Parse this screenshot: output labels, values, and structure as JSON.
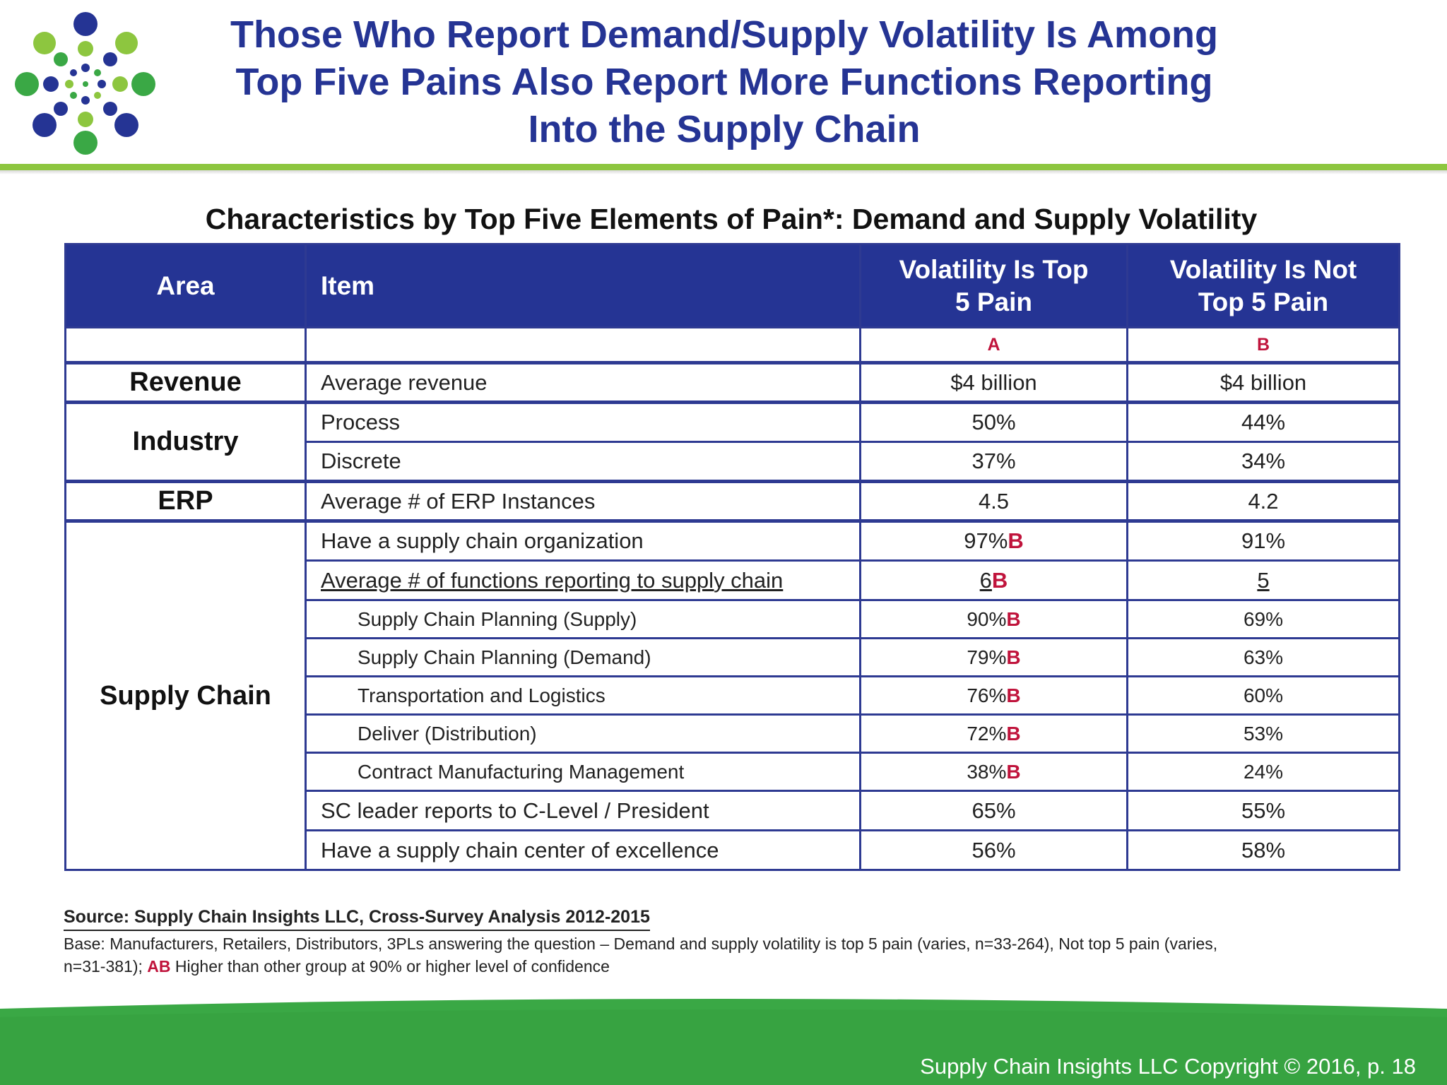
{
  "slide": {
    "title_lines": [
      "Those Who Report Demand/Supply Volatility Is Among",
      "Top Five Pains Also Report More Functions Reporting",
      "Into the Supply Chain"
    ],
    "logo_icon": "dot-burst-logo-icon",
    "colors": {
      "navy": "#253494",
      "green": "#8dc63f",
      "footer_green": "#3aa845",
      "significance_red": "#c0143c"
    }
  },
  "table": {
    "title": "Characteristics by Top Five Elements of Pain*: Demand and Supply Volatility",
    "headers": {
      "area": "Area",
      "item": "Item",
      "col_a": "Volatility Is Top 5 Pain",
      "col_b": "Volatility Is Not Top 5 Pain"
    },
    "letters": {
      "a": "A",
      "b": "B"
    },
    "groups": [
      {
        "area": "Revenue",
        "rows": [
          {
            "item": "Average revenue",
            "a": "$4 billion",
            "a_sig": "",
            "b": "$4 billion",
            "b_sig": ""
          }
        ]
      },
      {
        "area": "Industry",
        "rows": [
          {
            "item": "Process",
            "a": "50%",
            "a_sig": "",
            "b": "44%",
            "b_sig": ""
          },
          {
            "item": "Discrete",
            "a": "37%",
            "a_sig": "",
            "b": "34%",
            "b_sig": ""
          }
        ]
      },
      {
        "area": "ERP",
        "rows": [
          {
            "item": "Average # of ERP Instances",
            "a": "4.5",
            "a_sig": "",
            "b": "4.2",
            "b_sig": ""
          }
        ]
      },
      {
        "area": "Supply Chain",
        "rows": [
          {
            "item": "Have a supply  chain organization",
            "a": "97%",
            "a_sig": "B",
            "b": "91%",
            "b_sig": ""
          },
          {
            "item": "Average # of functions reporting to supply chain",
            "a": "6",
            "a_sig": "B",
            "b": "5",
            "b_sig": ""
          },
          {
            "item": "Supply Chain Planning (Supply)",
            "a": "90%",
            "a_sig": "B",
            "b": "69%",
            "b_sig": ""
          },
          {
            "item": "Supply Chain Planning (Demand)",
            "a": "79%",
            "a_sig": "B",
            "b": "63%",
            "b_sig": ""
          },
          {
            "item": "Transportation and Logistics",
            "a": "76%",
            "a_sig": "B",
            "b": "60%",
            "b_sig": ""
          },
          {
            "item": "Deliver (Distribution)",
            "a": "72%",
            "a_sig": "B",
            "b": "53%",
            "b_sig": ""
          },
          {
            "item": "Contract Manufacturing Management",
            "a": "38%",
            "a_sig": "B",
            "b": "24%",
            "b_sig": ""
          },
          {
            "item": "SC leader reports to C-Level / President",
            "a": "65%",
            "a_sig": "",
            "b": "55%",
            "b_sig": ""
          },
          {
            "item": "Have a supply  chain center of excellence",
            "a": "56%",
            "a_sig": "",
            "b": "58%",
            "b_sig": ""
          }
        ]
      }
    ]
  },
  "footnote": {
    "source": "Source:  Supply Chain Insights LLC, Cross-Survey Analysis 2012-2015",
    "base_line1": "Base:  Manufacturers,  Retailers, Distributors, 3PLs answering the question – Demand and supply volatility  is top 5 pain (varies, n=33-264), Not top 5 pain (varies,",
    "base_line2_start": "n=31-381);",
    "base_line2_red": "AB",
    "base_line2_end": "Higher than  other group at 90% or higher level of confidence"
  },
  "footer": {
    "copyright": "Supply Chain Insights LLC Copyright © 2016, p. 18"
  }
}
